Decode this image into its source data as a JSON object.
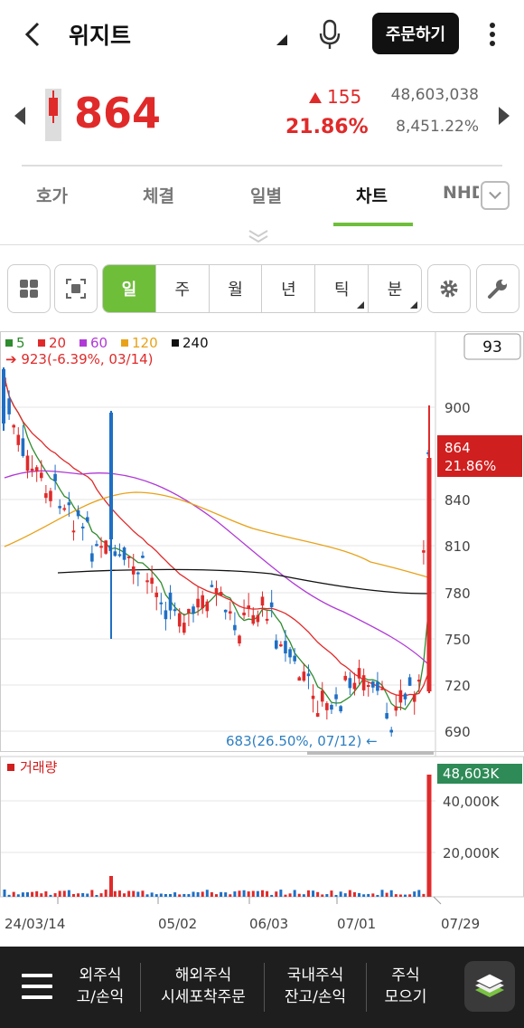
{
  "header": {
    "title": "위지트",
    "order_label": "주문하기"
  },
  "quote": {
    "price": "864",
    "change": "155",
    "change_pct": "21.86%",
    "volume": "48,603,038",
    "volume_pct": "8,451.22%"
  },
  "tabs": [
    {
      "label": "호가"
    },
    {
      "label": "체결"
    },
    {
      "label": "일별"
    },
    {
      "label": "차트"
    },
    {
      "label": "NHD"
    }
  ],
  "toolbar": {
    "periods": [
      {
        "label": "일"
      },
      {
        "label": "주"
      },
      {
        "label": "월"
      },
      {
        "label": "년"
      },
      {
        "label": "틱"
      },
      {
        "label": "분"
      }
    ]
  },
  "chart": {
    "ma_legend": [
      {
        "label": "5",
        "color": "#2e8b2e"
      },
      {
        "label": "20",
        "color": "#e02a2a"
      },
      {
        "label": "60",
        "color": "#b03ad6"
      },
      {
        "label": "120",
        "color": "#e8a21a"
      },
      {
        "label": "240",
        "color": "#111111"
      }
    ],
    "high_note": "923(-6.39%, 03/14)",
    "low_note": "683(26.50%, 07/12)",
    "count_box": "93",
    "last_price_tag": "864",
    "last_pct_tag": "21.86%",
    "volume_label": "거래량",
    "volume_tag": "48,603K",
    "date_labels": [
      "24/03/14",
      "05/02",
      "06/03",
      "07/01",
      "07/29"
    ]
  },
  "chart_data": {
    "type": "candlestick",
    "y_ticks": [
      "900",
      "840",
      "810",
      "780",
      "750",
      "720",
      "690"
    ],
    "volume_ticks": [
      "40,000K",
      "20,000K"
    ],
    "x_labels": [
      "24/03/14",
      "05/02",
      "06/03",
      "07/01",
      "07/29"
    ]
  },
  "bottom_nav": [
    {
      "line1": "외주식",
      "line2": "고/손익"
    },
    {
      "line1": "해외주식",
      "line2": "시세포착주문"
    },
    {
      "line1": "국내주식",
      "line2": "잔고/손익"
    },
    {
      "line1": "주식",
      "line2": "모으기"
    }
  ]
}
